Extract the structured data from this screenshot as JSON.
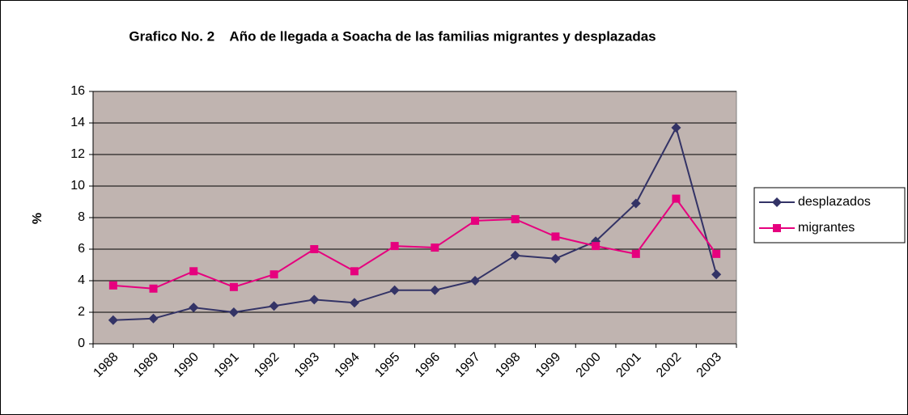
{
  "chart_data": {
    "type": "line",
    "title": "Grafico No. 2    Año de llegada a Soacha de las familias migrantes y desplazadas",
    "y_label": "%",
    "categories": [
      "1988",
      "1989",
      "1990",
      "1991",
      "1992",
      "1993",
      "1994",
      "1995",
      "1996",
      "1997",
      "1998",
      "1999",
      "2000",
      "2001",
      "2002",
      "2003"
    ],
    "series": [
      {
        "name": "desplazados",
        "color": "#333366",
        "marker": "diamond",
        "values": [
          1.5,
          1.6,
          2.3,
          2.0,
          2.4,
          2.8,
          2.6,
          3.4,
          3.4,
          4.0,
          5.6,
          5.4,
          6.5,
          8.9,
          13.7,
          4.4
        ]
      },
      {
        "name": "migrantes",
        "color": "#e6007e",
        "marker": "square",
        "values": [
          3.7,
          3.5,
          4.6,
          3.6,
          4.4,
          6.0,
          4.6,
          6.2,
          6.1,
          7.8,
          7.9,
          6.8,
          6.2,
          5.7,
          9.2,
          5.7
        ]
      }
    ],
    "ylim": [
      0,
      16
    ],
    "yticks": [
      0,
      2,
      4,
      6,
      8,
      10,
      12,
      14,
      16
    ],
    "grid": true,
    "plot_background": "#c0b4b0",
    "legend": "right"
  }
}
